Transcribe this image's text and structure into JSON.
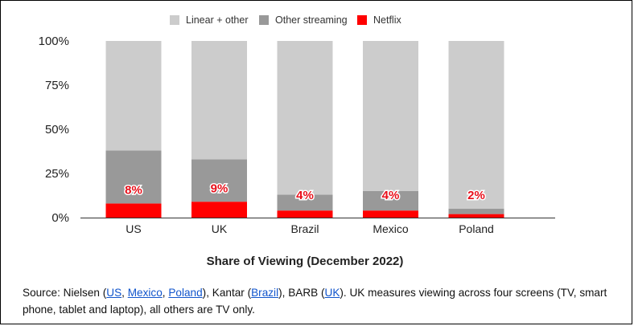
{
  "chart_data": {
    "type": "bar",
    "stacked": true,
    "categories": [
      "US",
      "UK",
      "Brazil",
      "Mexico",
      "Poland"
    ],
    "series": [
      {
        "name": "Linear + other",
        "color": "#cccccc",
        "values": [
          62,
          67,
          87,
          85,
          95
        ]
      },
      {
        "name": "Other streaming",
        "color": "#999999",
        "values": [
          30,
          24,
          9,
          11,
          3
        ]
      },
      {
        "name": "Netflix",
        "color": "#ff0000",
        "values": [
          8,
          9,
          4,
          4,
          2
        ]
      }
    ],
    "data_labels": [
      "8%",
      "9%",
      "4%",
      "4%",
      "2%"
    ],
    "yticks": [
      "0%",
      "25%",
      "50%",
      "75%",
      "100%"
    ],
    "ylim": [
      0,
      100
    ],
    "xlabel": "Share of Viewing (December 2022)",
    "title": "",
    "grid": false,
    "legend_position": "top"
  },
  "source": {
    "prefix": "Source: Nielsen (",
    "links_nielsen": [
      "US",
      "Mexico",
      "Poland"
    ],
    "mid1": "), Kantar (",
    "link_kantar": "Brazil",
    "mid2": "), BARB (",
    "link_barb": "UK",
    "suffix": "). UK measures viewing across four screens (TV, smart phone, tablet and laptop), all others are TV only."
  }
}
